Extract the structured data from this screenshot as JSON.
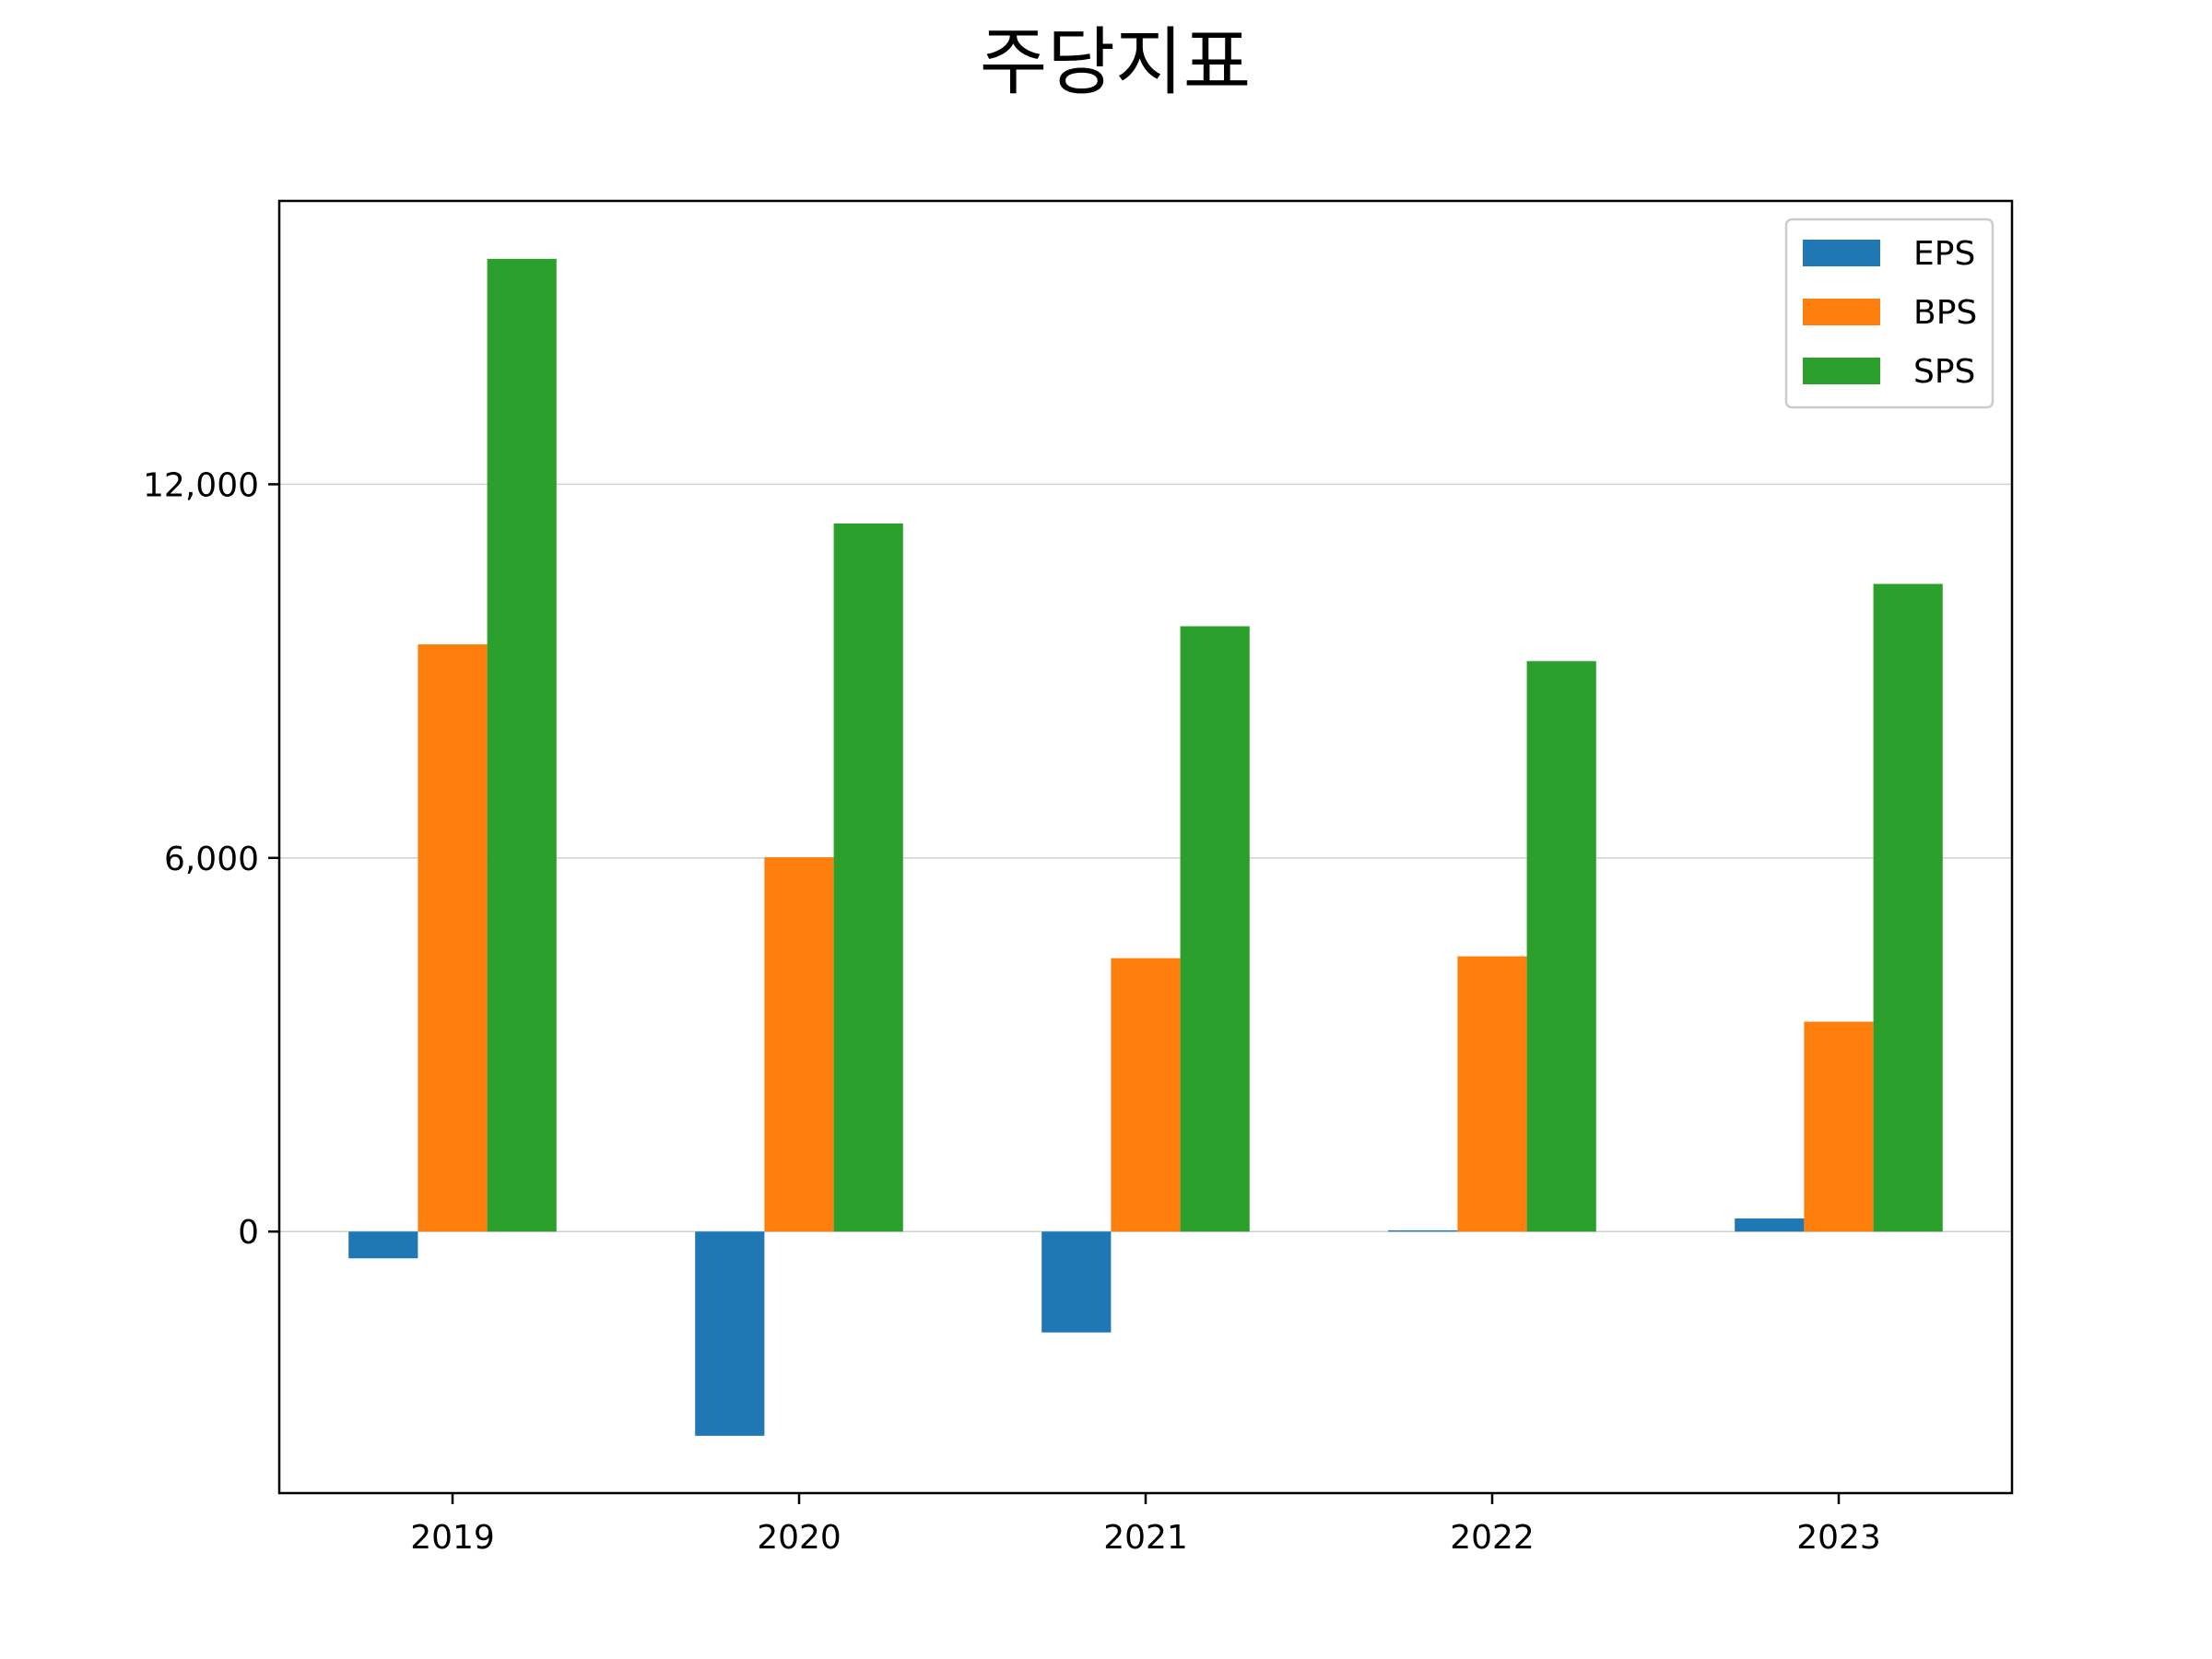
{
  "chart_data": {
    "type": "bar",
    "title": "주당지표",
    "xlabel": "",
    "ylabel": "",
    "categories": [
      "2019",
      "2020",
      "2021",
      "2022",
      "2023"
    ],
    "series": [
      {
        "name": "EPS",
        "color": "#1f77b4",
        "values": [
          -430,
          -3280,
          -1620,
          20,
          210
        ]
      },
      {
        "name": "BPS",
        "color": "#ff7f0e",
        "values": [
          9430,
          6010,
          4390,
          4420,
          3370
        ]
      },
      {
        "name": "SPS",
        "color": "#2ca02c",
        "values": [
          15620,
          11370,
          9720,
          9160,
          10400
        ]
      }
    ],
    "yticks": [
      0,
      6000,
      12000
    ],
    "ytick_labels": [
      "0",
      "6,000",
      "12,000"
    ],
    "ylim": [
      -4200,
      16550
    ],
    "grid": "horizontal",
    "legend_position": "top-right"
  }
}
